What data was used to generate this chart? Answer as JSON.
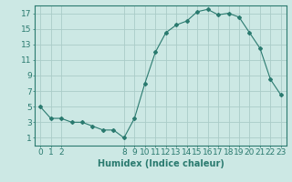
{
  "xlabel": "Humidex (Indice chaleur)",
  "x_values": [
    0,
    1,
    2,
    3,
    4,
    5,
    6,
    7,
    8,
    9,
    10,
    11,
    12,
    13,
    14,
    15,
    16,
    17,
    18,
    19,
    20,
    21,
    22,
    23
  ],
  "y_values": [
    5,
    3.5,
    3.5,
    3,
    3,
    2.5,
    2,
    2,
    1,
    3.5,
    8,
    12,
    14.5,
    15.5,
    16,
    17.2,
    17.5,
    16.8,
    17,
    16.5,
    14.5,
    12.5,
    8.5,
    6.5
  ],
  "line_color": "#2a7a6f",
  "marker": "D",
  "marker_size": 2.0,
  "bg_color": "#cce8e4",
  "grid_color": "#aaccc8",
  "ylim": [
    0,
    18
  ],
  "xlim": [
    -0.5,
    23.5
  ],
  "yticks": [
    1,
    3,
    5,
    7,
    9,
    11,
    13,
    15,
    17
  ],
  "xticks": [
    0,
    1,
    2,
    8,
    9,
    10,
    11,
    12,
    13,
    14,
    15,
    16,
    17,
    18,
    19,
    20,
    21,
    22,
    23
  ],
  "xtick_labels": [
    "0",
    "1",
    "2",
    "8",
    "9",
    "10",
    "11",
    "12",
    "13",
    "14",
    "15",
    "16",
    "17",
    "18",
    "19",
    "20",
    "21",
    "22",
    "23"
  ],
  "tick_color": "#2a7a6f",
  "font_color": "#2a7a6f",
  "xlabel_fontsize": 7,
  "tick_fontsize": 6.5
}
